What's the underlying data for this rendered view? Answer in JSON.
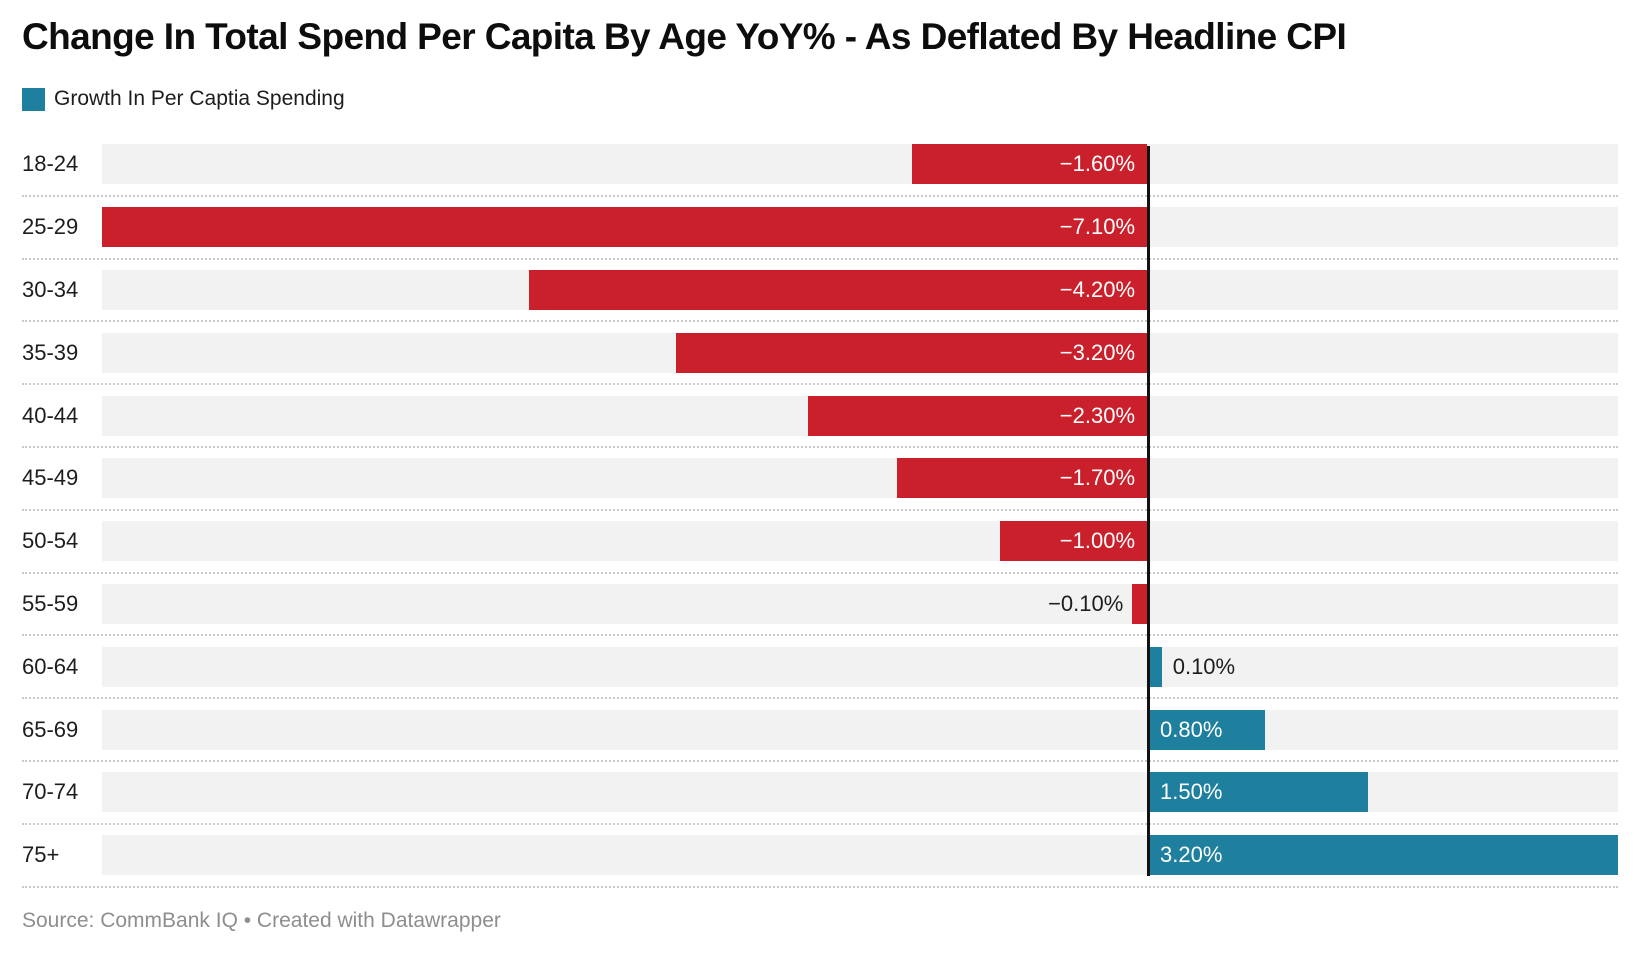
{
  "title": "Change In Total Spend Per Capita By Age YoY% - As Deflated By Headline CPI",
  "legend": {
    "label": "Growth In Per Captia Spending",
    "swatch_color": "#1e7f9e"
  },
  "source": "Source: CommBank IQ • Created with Datawrapper",
  "chart_data": {
    "type": "bar",
    "orientation": "horizontal",
    "title": "Change In Total Spend Per Capita By Age YoY% - As Deflated By Headline CPI",
    "legend_entries": [
      "Growth In Per Captia Spending"
    ],
    "legend_position": "top-left",
    "categories": [
      "18-24",
      "25-29",
      "30-34",
      "35-39",
      "40-44",
      "45-49",
      "50-54",
      "55-59",
      "60-64",
      "65-69",
      "70-74",
      "75+"
    ],
    "values": [
      -1.6,
      -7.1,
      -4.2,
      -3.2,
      -2.3,
      -1.7,
      -1.0,
      -0.1,
      0.1,
      0.8,
      1.5,
      3.2
    ],
    "labels": [
      "−1.60%",
      "−7.10%",
      "−4.20%",
      "−3.20%",
      "−2.30%",
      "−1.70%",
      "−1.00%",
      "−0.10%",
      "0.10%",
      "0.80%",
      "1.50%",
      "3.20%"
    ],
    "xlabel": "",
    "ylabel": "",
    "xlim": [
      -7.1,
      3.2
    ],
    "grid": false,
    "zero_line": true,
    "negative_color": "#c9202c",
    "positive_color": "#1e7f9e",
    "track_color": "#f2f2f2",
    "zero_line_color": "#121212",
    "separator_color": "#c9c9c9",
    "inside_label_min": 0.5
  }
}
